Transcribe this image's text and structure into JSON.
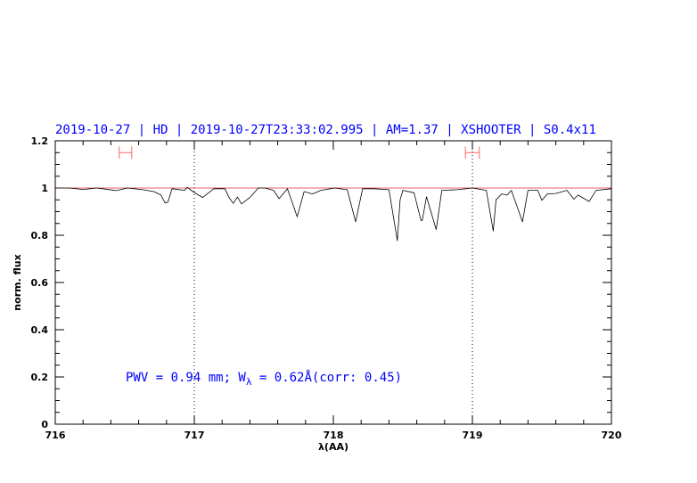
{
  "chart_data": {
    "type": "line",
    "title": "2019-10-27 | HD | 2019-10-27T23:33:02.995 | AM=1.37 | XSHOOTER | S0.4x11",
    "xlabel": "λ(AA)",
    "ylabel": "norm. flux",
    "xlim": [
      716,
      720
    ],
    "ylim": [
      0,
      1.2
    ],
    "xticks": [
      "716",
      "717",
      "718",
      "719",
      "720"
    ],
    "xtick_values": [
      716,
      717,
      718,
      719,
      720
    ],
    "yticks": [
      "0",
      "0.2",
      "0.4",
      "0.6",
      "0.8",
      "1",
      "1.2"
    ],
    "ytick_values": [
      0,
      0.2,
      0.4,
      0.6,
      0.8,
      1,
      1.2
    ],
    "x_minor_step": 0.2,
    "y_minor_step": 0.05,
    "grid": false,
    "reference_line": {
      "y": 1.0,
      "color": "#e06060"
    },
    "vertical_markers": [
      717,
      719
    ],
    "range_markers": [
      {
        "x": [
          716.46,
          716.55
        ],
        "y": 1.15,
        "color": "#ff6666"
      },
      {
        "x": [
          718.95,
          719.05
        ],
        "y": 1.15,
        "color": "#ff6666"
      }
    ],
    "annotation": {
      "prefix": "PWV = 0.94 mm; W",
      "subscript": "λ",
      "suffix": " = 0.62Å(corr: 0.45)"
    },
    "series": [
      {
        "color": "#000000",
        "x": [
          716.0,
          716.1,
          716.2,
          716.3,
          716.44,
          716.52,
          716.63,
          716.71,
          716.76,
          716.79,
          716.81,
          716.84,
          716.93,
          716.95,
          716.99,
          717.06,
          717.14,
          717.22,
          717.25,
          717.28,
          717.31,
          717.34,
          717.4,
          717.46,
          717.51,
          717.57,
          717.61,
          717.67,
          717.74,
          717.79,
          717.85,
          717.91,
          718.01,
          718.1,
          718.16,
          718.21,
          718.29,
          718.4,
          718.46,
          718.48,
          718.5,
          718.58,
          718.63,
          718.64,
          718.67,
          718.74,
          718.78,
          718.89,
          719.0,
          719.1,
          719.15,
          719.17,
          719.21,
          719.25,
          719.28,
          719.36,
          719.4,
          719.47,
          719.5,
          719.54,
          719.6,
          719.68,
          719.73,
          719.76,
          719.79,
          719.84,
          719.89,
          720.0
        ],
        "y": [
          1.0,
          1.0,
          0.994,
          1.0,
          0.989,
          1.0,
          0.993,
          0.985,
          0.97,
          0.937,
          0.94,
          0.997,
          0.99,
          1.003,
          0.985,
          0.96,
          0.997,
          0.997,
          0.96,
          0.935,
          0.962,
          0.933,
          0.96,
          1.0,
          1.0,
          0.99,
          0.955,
          0.997,
          0.878,
          0.985,
          0.975,
          0.99,
          1.0,
          0.993,
          0.857,
          0.997,
          0.997,
          0.993,
          0.777,
          0.95,
          0.99,
          0.98,
          0.863,
          0.863,
          0.963,
          0.824,
          0.99,
          0.993,
          1.0,
          0.99,
          0.818,
          0.95,
          0.975,
          0.97,
          0.99,
          0.857,
          0.99,
          0.99,
          0.948,
          0.975,
          0.977,
          0.99,
          0.953,
          0.97,
          0.96,
          0.943,
          0.99,
          0.997
        ]
      }
    ]
  }
}
